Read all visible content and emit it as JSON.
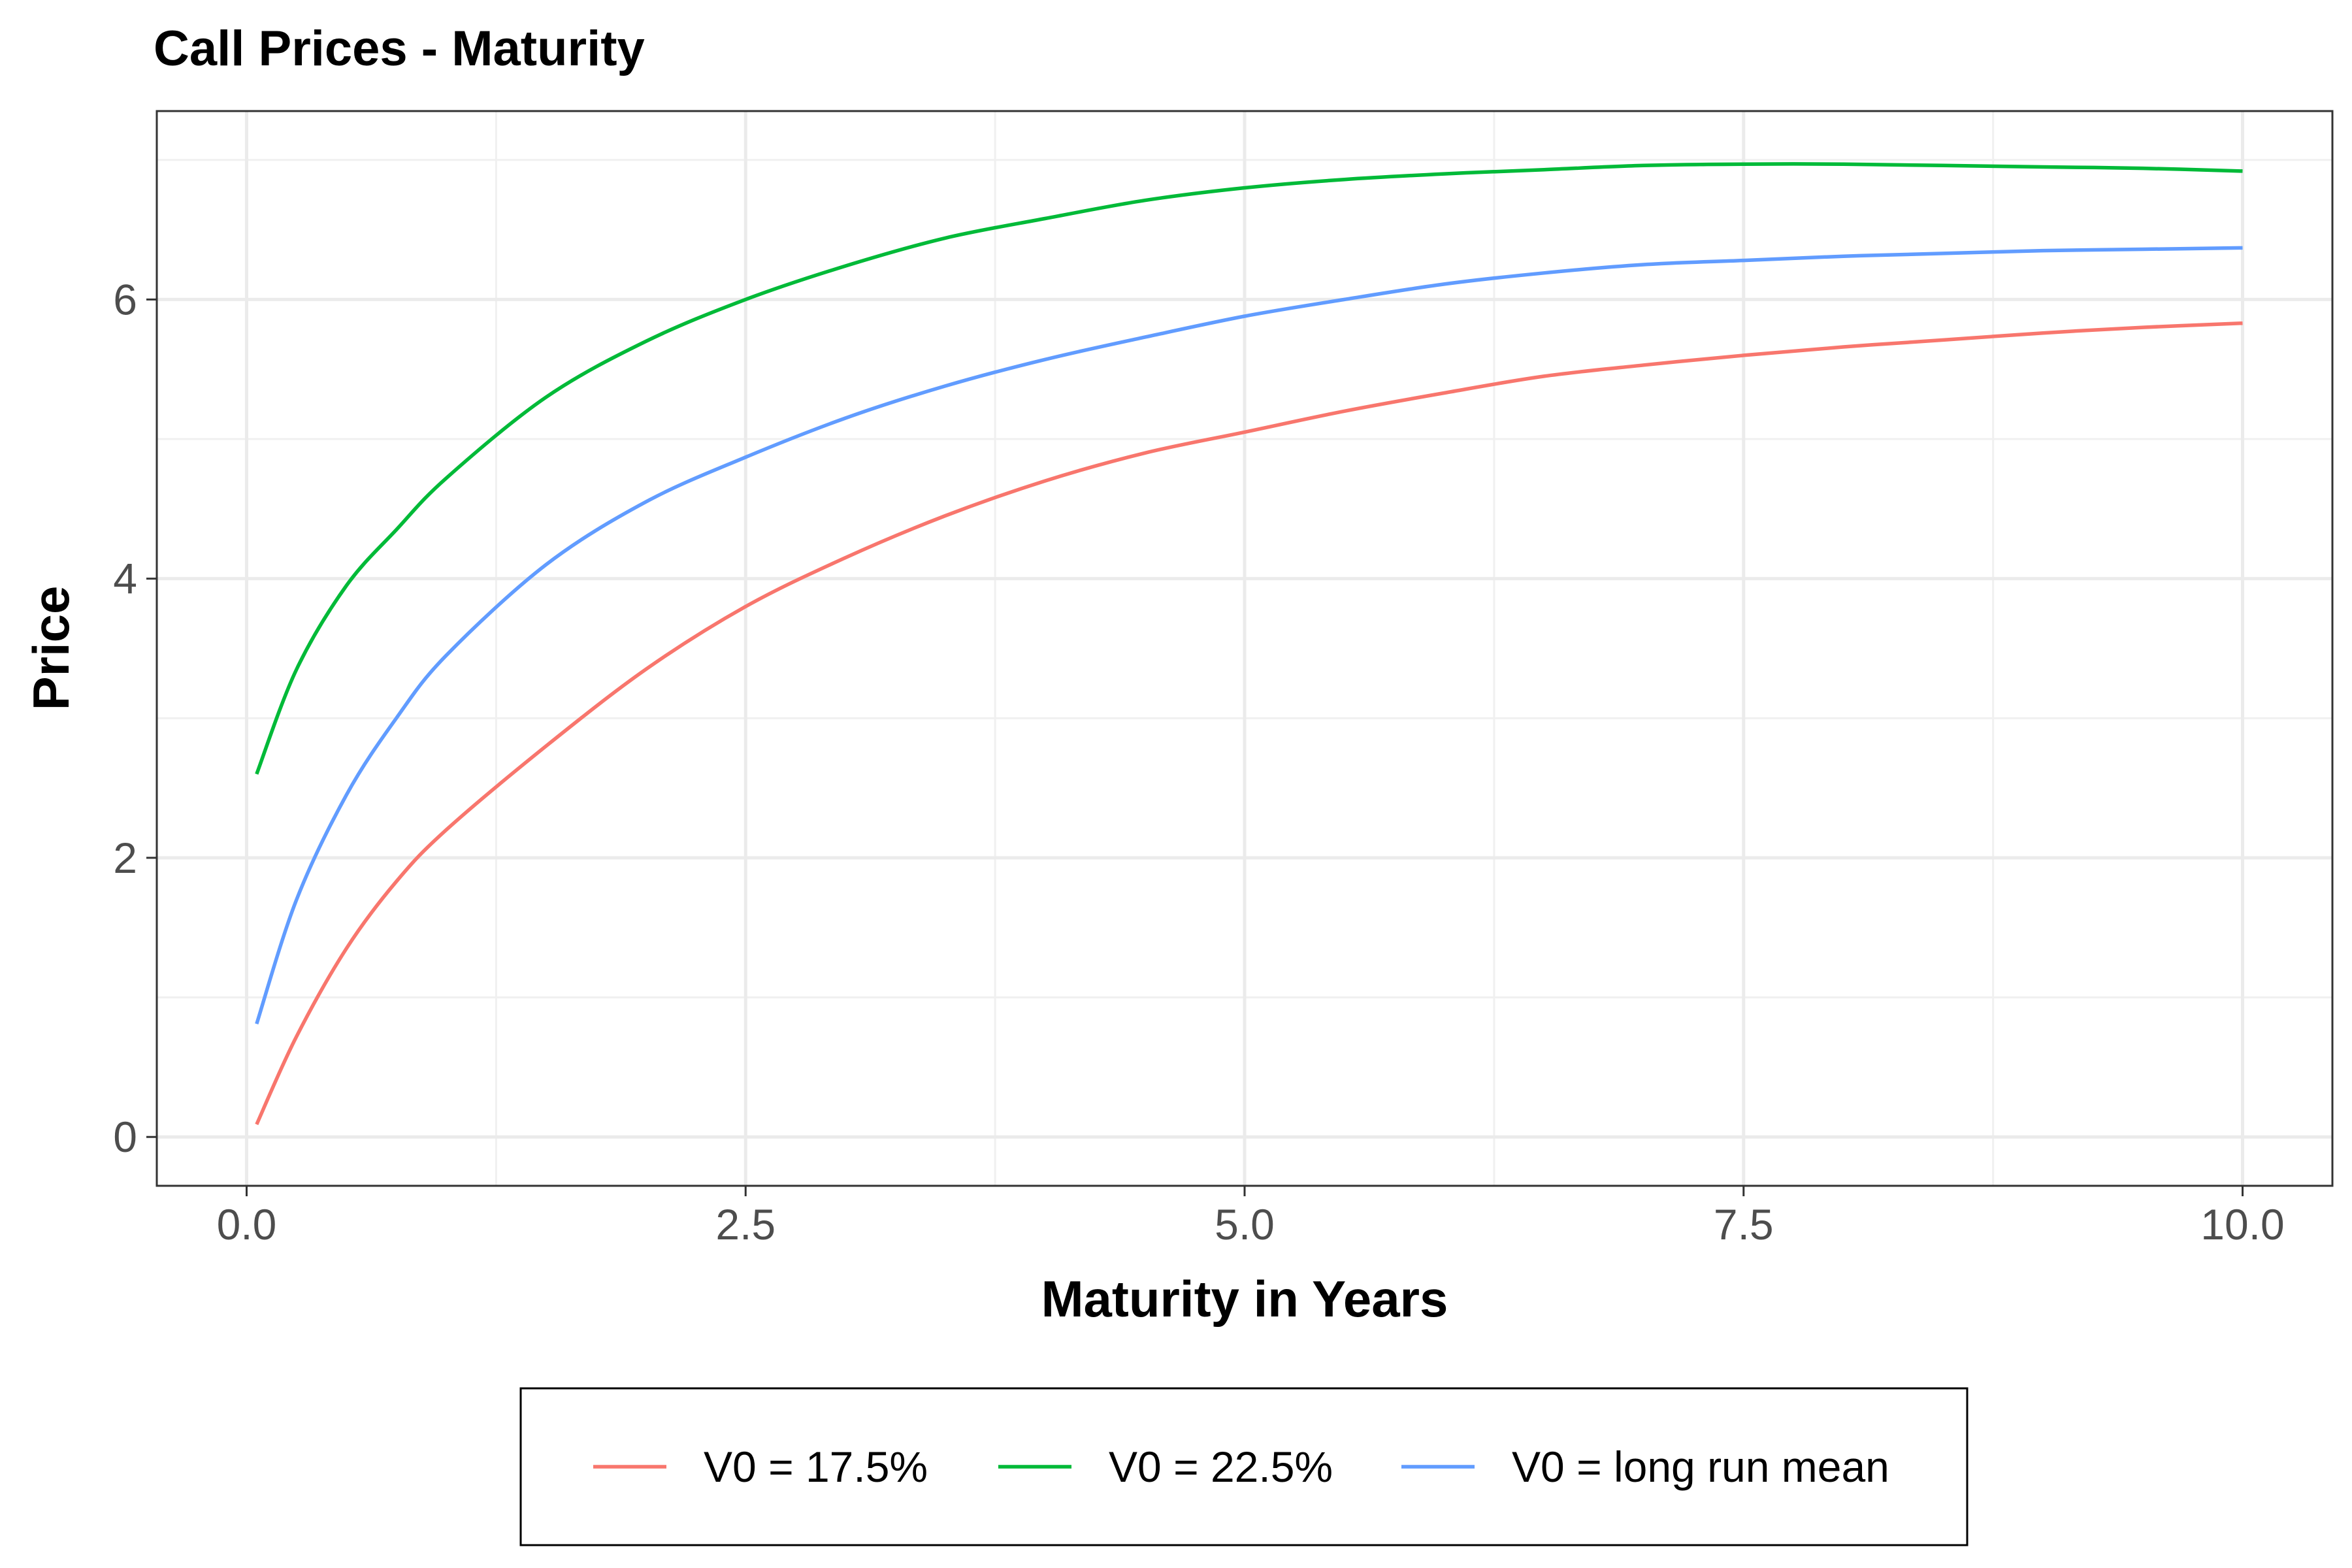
{
  "chart_data": {
    "type": "line",
    "title": "Call Prices - Maturity",
    "xlabel": "Maturity in Years",
    "ylabel": "Price",
    "xlim": [
      -0.45,
      10.45
    ],
    "ylim": [
      -0.35,
      7.35
    ],
    "x_ticks": [
      0.0,
      2.5,
      5.0,
      7.5,
      10.0
    ],
    "x_tick_labels": [
      "0.0",
      "2.5",
      "5.0",
      "7.5",
      "10.0"
    ],
    "y_ticks": [
      0,
      2,
      4,
      6
    ],
    "y_tick_labels": [
      "0",
      "2",
      "4",
      "6"
    ],
    "grid": true,
    "legend_position": "bottom",
    "series": [
      {
        "name": "V0 = 17.5%",
        "color": "#F8766D",
        "x": [
          0.05,
          0.25,
          0.5,
          0.75,
          1.0,
          1.5,
          2.0,
          2.5,
          3.0,
          3.5,
          4.0,
          4.5,
          5.0,
          5.5,
          6.0,
          6.5,
          7.0,
          7.5,
          8.0,
          8.5,
          9.0,
          9.5,
          10.0
        ],
        "values": [
          0.09,
          0.72,
          1.35,
          1.83,
          2.2,
          2.8,
          3.35,
          3.8,
          4.15,
          4.45,
          4.7,
          4.9,
          5.05,
          5.2,
          5.33,
          5.45,
          5.53,
          5.6,
          5.66,
          5.71,
          5.76,
          5.8,
          5.83
        ]
      },
      {
        "name": "V0 = 22.5%",
        "color": "#00BA38",
        "x": [
          0.05,
          0.25,
          0.5,
          0.75,
          1.0,
          1.5,
          2.0,
          2.5,
          3.0,
          3.5,
          4.0,
          4.5,
          5.0,
          5.5,
          6.0,
          6.5,
          7.0,
          7.5,
          8.0,
          8.5,
          9.0,
          9.5,
          10.0
        ],
        "values": [
          2.6,
          3.35,
          3.95,
          4.35,
          4.72,
          5.3,
          5.7,
          6.0,
          6.24,
          6.44,
          6.58,
          6.71,
          6.8,
          6.86,
          6.9,
          6.93,
          6.96,
          6.97,
          6.97,
          6.96,
          6.95,
          6.94,
          6.92
        ]
      },
      {
        "name": "V0 = long run mean",
        "color": "#619CFF",
        "x": [
          0.05,
          0.25,
          0.5,
          0.75,
          1.0,
          1.5,
          2.0,
          2.5,
          3.0,
          3.5,
          4.0,
          4.5,
          5.0,
          5.5,
          6.0,
          6.5,
          7.0,
          7.5,
          8.0,
          8.5,
          9.0,
          9.5,
          10.0
        ],
        "values": [
          0.81,
          1.7,
          2.45,
          3.0,
          3.45,
          4.1,
          4.55,
          4.87,
          5.15,
          5.38,
          5.57,
          5.73,
          5.88,
          6.0,
          6.11,
          6.19,
          6.25,
          6.28,
          6.31,
          6.33,
          6.35,
          6.36,
          6.37
        ]
      }
    ]
  }
}
